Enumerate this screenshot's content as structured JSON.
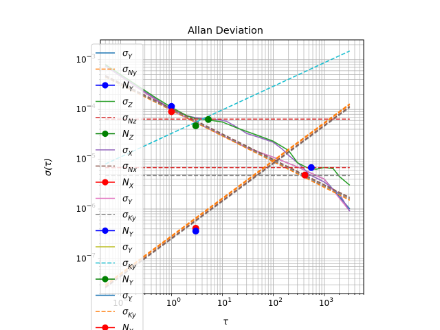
{
  "chart_data": {
    "type": "line",
    "title": "Allan Deviation",
    "xlabel": "τ",
    "ylabel": "σ(τ)",
    "xscale": "log",
    "yscale": "log",
    "xlim": [
      0.04,
      6000
    ],
    "ylim": [
      2e-08,
      0.0025
    ],
    "grid": true,
    "legend_position": "upper-left",
    "x_tick_labels": [
      {
        "value": 0.1,
        "base": "10",
        "exp": "−1"
      },
      {
        "value": 1,
        "base": "10",
        "exp": "0"
      },
      {
        "value": 10,
        "base": "10",
        "exp": "1"
      },
      {
        "value": 100,
        "base": "10",
        "exp": "2"
      },
      {
        "value": 1000,
        "base": "10",
        "exp": "3"
      }
    ],
    "y_tick_labels": [
      {
        "value": 1e-07,
        "base": "10",
        "exp": "−7"
      },
      {
        "value": 1e-06,
        "base": "10",
        "exp": "−6"
      },
      {
        "value": 1e-05,
        "base": "10",
        "exp": "−5"
      },
      {
        "value": 0.0001,
        "base": "10",
        "exp": "−4"
      },
      {
        "value": 0.001,
        "base": "10",
        "exp": "−3"
      }
    ],
    "legend": [
      {
        "base": "σ",
        "sub": "Y",
        "color": "#1f77b4",
        "style": "solid",
        "marker": false
      },
      {
        "base": "σ",
        "sub": "Ny",
        "color": "#ff7f0e",
        "style": "dashed",
        "marker": false
      },
      {
        "base": "N",
        "sub": "Y",
        "color": "#0000ff",
        "style": "solid",
        "marker": true
      },
      {
        "base": "σ",
        "sub": "Z",
        "color": "#2ca02c",
        "style": "solid",
        "marker": false
      },
      {
        "base": "σ",
        "sub": "Nz",
        "color": "#d62728",
        "style": "dashed",
        "marker": false
      },
      {
        "base": "N",
        "sub": "Z",
        "color": "#008000",
        "style": "solid",
        "marker": true
      },
      {
        "base": "σ",
        "sub": "X",
        "color": "#9467bd",
        "style": "solid",
        "marker": false
      },
      {
        "base": "σ",
        "sub": "Nx",
        "color": "#8c564b",
        "style": "dashed",
        "marker": false
      },
      {
        "base": "N",
        "sub": "X",
        "color": "#ff0000",
        "style": "solid",
        "marker": true
      },
      {
        "base": "σ",
        "sub": "Y",
        "color": "#e377c2",
        "style": "solid",
        "marker": false
      },
      {
        "base": "σ",
        "sub": "Ky",
        "color": "#7f7f7f",
        "style": "dashed",
        "marker": false
      },
      {
        "base": "N",
        "sub": "Y",
        "color": "#0000ff",
        "style": "solid",
        "marker": true
      },
      {
        "base": "σ",
        "sub": "Y",
        "color": "#bcbd22",
        "style": "solid",
        "marker": false
      },
      {
        "base": "σ",
        "sub": "Ky",
        "color": "#17becf",
        "style": "dashed",
        "marker": false
      },
      {
        "base": "N",
        "sub": "Y",
        "color": "#008000",
        "style": "solid",
        "marker": true
      },
      {
        "base": "σ",
        "sub": "Y",
        "color": "#1f77b4",
        "style": "solid",
        "marker": false
      },
      {
        "base": "σ",
        "sub": "Ky",
        "color": "#ff7f0e",
        "style": "dashed",
        "marker": false
      },
      {
        "base": "N",
        "sub": "Y",
        "color": "#ff0000",
        "style": "solid",
        "marker": true
      }
    ],
    "series": [
      {
        "color": "#bcbd22",
        "style": "solid",
        "x": [
          0.05,
          1,
          3,
          10,
          30,
          100,
          300,
          1000,
          3200
        ],
        "y": [
          0.00075,
          9.5e-05,
          5.5e-05,
          3e-05,
          1.7e-05,
          1.1e-05,
          7e-06,
          4e-06,
          1e-06
        ]
      },
      {
        "color": "#1f77b4",
        "style": "solid",
        "x": [
          0.05,
          1,
          3,
          10,
          30,
          100,
          300,
          1000,
          3200
        ],
        "y": [
          0.00075,
          9.5e-05,
          5.5e-05,
          3e-05,
          1.7e-05,
          1.1e-05,
          7e-06,
          4e-06,
          1e-06
        ]
      },
      {
        "color": "#e377c2",
        "style": "solid",
        "x": [
          0.05,
          1,
          3,
          10,
          30,
          100,
          300,
          1000,
          3200
        ],
        "y": [
          0.00075,
          9.5e-05,
          5.5e-05,
          3e-05,
          1.7e-05,
          1.1e-05,
          7e-06,
          4e-06,
          9e-07
        ]
      },
      {
        "color": "#9467bd",
        "style": "solid",
        "x": [
          0.05,
          0.5,
          1,
          2,
          3,
          5,
          8,
          12,
          20,
          30,
          50,
          100,
          150,
          200,
          300,
          400,
          500,
          700,
          1000,
          2000,
          3200
        ],
        "y": [
          0.00075,
          0.00016,
          0.0001,
          7.5e-05,
          6.8e-05,
          6.4e-05,
          6.3e-05,
          5.8e-05,
          4.3e-05,
          3.3e-05,
          2.8e-05,
          2.2e-05,
          1.6e-05,
          1.2e-05,
          8.5e-06,
          6.5e-06,
          5e-06,
          4.2e-06,
          3.5e-06,
          2e-06,
          9e-07
        ]
      },
      {
        "color": "#2ca02c",
        "style": "solid",
        "x": [
          0.05,
          0.5,
          1,
          2,
          3,
          5,
          10,
          20,
          50,
          100,
          200,
          300,
          500,
          700,
          1000,
          1500,
          2000,
          3200
        ],
        "y": [
          0.0008,
          0.00017,
          0.00011,
          7.5e-05,
          6.5e-05,
          6.2e-05,
          5.6e-05,
          4.2e-05,
          3e-05,
          2.3e-05,
          1.5e-05,
          8.5e-06,
          6.5e-06,
          6.3e-06,
          6.8e-06,
          6.5e-06,
          4.5e-06,
          3e-06
        ]
      },
      {
        "color": "#ff7f0e",
        "style": "dashed",
        "x": [
          0.05,
          3200
        ],
        "y": [
          0.00045,
          1.5e-06
        ]
      },
      {
        "color": "#8c564b",
        "style": "dashed",
        "x": [
          0.05,
          3200
        ],
        "y": [
          0.00048,
          1.7e-06
        ]
      },
      {
        "color": "#7f7f7f",
        "style": "dashed",
        "x": [
          0.05,
          3200
        ],
        "y": [
          0.00046,
          1.6e-06
        ]
      },
      {
        "color": "#d62728",
        "style": "dashed",
        "x": [
          0.05,
          3200
        ],
        "y": [
          6.4e-05,
          6.4e-05
        ]
      },
      {
        "color": "#d62728",
        "style": "dashed",
        "x": [
          0.05,
          3200
        ],
        "y": [
          6.8e-06,
          6.8e-06
        ]
      },
      {
        "color": "#7f7f7f",
        "style": "dashed",
        "x": [
          0.05,
          3200
        ],
        "y": [
          4.7e-06,
          4.7e-06
        ]
      },
      {
        "color": "#17becf",
        "style": "dashed",
        "x": [
          0.05,
          3200
        ],
        "y": [
          8e-06,
          0.0015
        ]
      },
      {
        "color": "#ff7f0e",
        "style": "dashed",
        "x": [
          0.05,
          3200
        ],
        "y": [
          3e-08,
          0.00013
        ]
      },
      {
        "color": "#ff7f0e",
        "style": "dashed",
        "x": [
          0.05,
          3200
        ],
        "y": [
          2.9e-08,
          0.000125
        ]
      },
      {
        "color": "#7f7f7f",
        "style": "dashed",
        "x": [
          0.05,
          3200
        ],
        "y": [
          2.6e-08,
          0.00011
        ]
      },
      {
        "color": "#8c564b",
        "style": "dashed",
        "x": [
          0.05,
          3200
        ],
        "y": [
          2.7e-08,
          0.000115
        ]
      }
    ],
    "markers": [
      {
        "color": "#0000ff",
        "x": 1,
        "y": 0.000115
      },
      {
        "color": "#ff0000",
        "x": 1,
        "y": 9e-05
      },
      {
        "color": "#008000",
        "x": 3,
        "y": 4.7e-05
      },
      {
        "color": "#008000",
        "x": 5.3,
        "y": 6.3e-05
      },
      {
        "color": "#ff0000",
        "x": 3,
        "y": 4.1e-07
      },
      {
        "color": "#0000ff",
        "x": 3,
        "y": 3.6e-07
      },
      {
        "color": "#0000ff",
        "x": 560,
        "y": 6.8e-06
      },
      {
        "color": "#ff0000",
        "x": 420,
        "y": 4.8e-06
      }
    ]
  }
}
